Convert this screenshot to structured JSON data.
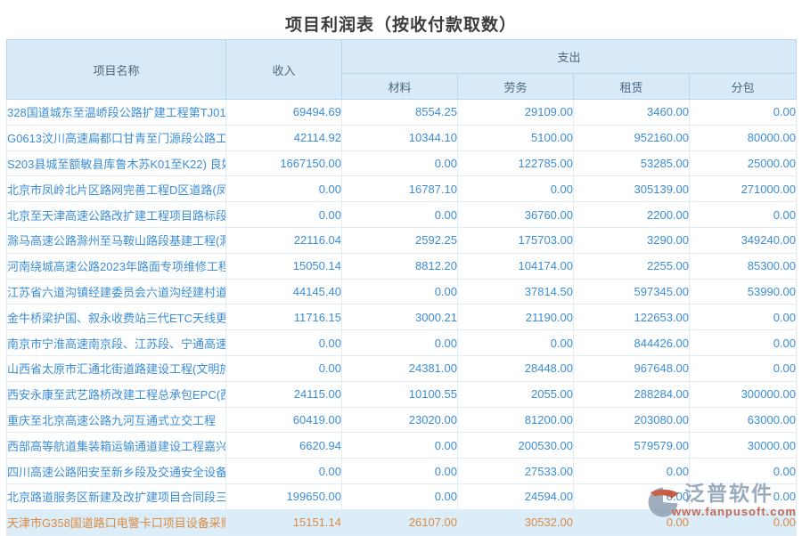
{
  "title": "项目利润表（按收付款取数）",
  "table": {
    "headers": {
      "project_name": "项目名称",
      "income": "收入",
      "expense_group": "支出",
      "expense_columns": [
        "材料",
        "劳务",
        "租赁",
        "分包"
      ]
    },
    "rows": [
      {
        "name": "328国道城东至温峤段公路扩建工程第TJ01",
        "income": "69494.69",
        "material": "8554.25",
        "labor": "29109.00",
        "rental": "3460.00",
        "subcontract": "0.00",
        "highlighted": false
      },
      {
        "name": "G0613汶川高速扁都口甘青至门源段公路工程",
        "income": "42114.92",
        "material": "10344.10",
        "labor": "5100.00",
        "rental": "952160.00",
        "subcontract": "80000.00",
        "highlighted": false
      },
      {
        "name": "S203县城至额敏县库鲁木苏K01至K22) 良好",
        "income": "1667150.00",
        "material": "0.00",
        "labor": "122785.00",
        "rental": "53285.00",
        "subcontract": "25000.00",
        "highlighted": false
      },
      {
        "name": "北京市凤岭北片区路网完善工程D区道路(凤岭",
        "income": "0.00",
        "material": "16787.10",
        "labor": "0.00",
        "rental": "305139.00",
        "subcontract": "271000.00",
        "highlighted": false
      },
      {
        "name": "北京至天津高速公路改扩建工程项目路标段",
        "income": "0.00",
        "material": "0.00",
        "labor": "36760.00",
        "rental": "2200.00",
        "subcontract": "0.00",
        "highlighted": false
      },
      {
        "name": "滁马高速公路滁州至马鞍山路段基建工程(滁",
        "income": "22116.04",
        "material": "2592.25",
        "labor": "175703.00",
        "rental": "3290.00",
        "subcontract": "349240.00",
        "highlighted": false
      },
      {
        "name": "河南绕城高速公路2023年路面专项维修工程",
        "income": "15050.14",
        "material": "8812.20",
        "labor": "104174.00",
        "rental": "2255.00",
        "subcontract": "85300.00",
        "highlighted": false
      },
      {
        "name": "江苏省六道沟镇经建委员会六道沟经建村道",
        "income": "44145.40",
        "material": "0.00",
        "labor": "37814.50",
        "rental": "597345.00",
        "subcontract": "53990.00",
        "highlighted": false
      },
      {
        "name": "金牛桥梁护国、叙永收费站三代ETC天线更换",
        "income": "11716.15",
        "material": "3000.21",
        "labor": "21190.00",
        "rental": "122653.00",
        "subcontract": "0.00",
        "highlighted": false
      },
      {
        "name": "南京市宁淮高速南京段、江苏段、宁通高速",
        "income": "0.00",
        "material": "0.00",
        "labor": "0.00",
        "rental": "844426.00",
        "subcontract": "0.00",
        "highlighted": false
      },
      {
        "name": "山西省太原市汇通北街道路建设工程(文明施",
        "income": "0.00",
        "material": "24381.00",
        "labor": "28448.00",
        "rental": "967648.00",
        "subcontract": "0.00",
        "highlighted": false
      },
      {
        "name": "西安永康至武艺路桥改建工程总承包EPC(西",
        "income": "24115.00",
        "material": "10100.55",
        "labor": "2055.00",
        "rental": "288284.00",
        "subcontract": "300000.00",
        "highlighted": false
      },
      {
        "name": "重庆至北京高速公路九河互通式立交工程",
        "income": "60419.00",
        "material": "23020.00",
        "labor": "81200.00",
        "rental": "203080.00",
        "subcontract": "63000.00",
        "highlighted": false
      },
      {
        "name": "西部高等航道集装箱运输通道建设工程嘉兴",
        "income": "6620.94",
        "material": "0.00",
        "labor": "200530.00",
        "rental": "579579.00",
        "subcontract": "30000.00",
        "highlighted": false
      },
      {
        "name": "四川高速公路阳安至新乡段及交通安全设备",
        "income": "0.00",
        "material": "0.00",
        "labor": "27533.00",
        "rental": "0.00",
        "subcontract": "0.00",
        "highlighted": false
      },
      {
        "name": "北京路道服务区新建及改扩建项目合同段三",
        "income": "199650.00",
        "material": "0.00",
        "labor": "24594.00",
        "rental": "0.00",
        "subcontract": "0.00",
        "highlighted": false
      },
      {
        "name": "天津市G358国道路口电警卡口项目设备采购",
        "income": "15151.14",
        "material": "26107.00",
        "labor": "30532.00",
        "rental": "0.00",
        "subcontract": "0.00",
        "highlighted": true
      }
    ]
  },
  "watermark": {
    "name": "泛普软件",
    "url": "www.fanpusoft.com"
  }
}
